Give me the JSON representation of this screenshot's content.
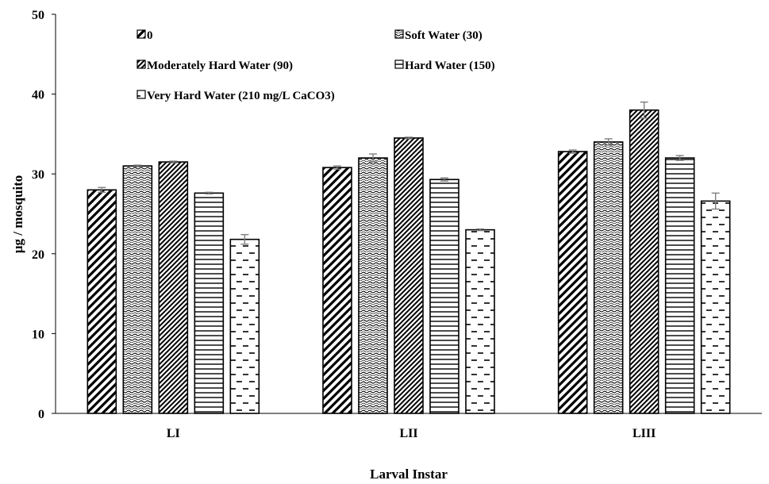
{
  "chart_data": {
    "type": "bar",
    "title": "",
    "xlabel": "Larval Instar",
    "ylabel": "µg / mosquito",
    "ylim": [
      0,
      50
    ],
    "yticks": [
      0,
      10,
      20,
      30,
      40,
      50
    ],
    "grid": false,
    "legend_position": "top (inside plot, two columns)",
    "categories": [
      "LI",
      "LII",
      "LIII"
    ],
    "series": [
      {
        "name": "0",
        "pattern": "wide-diagonal",
        "values": [
          28.0,
          30.8,
          32.8
        ],
        "errors": [
          0.3,
          0.2,
          0.2
        ]
      },
      {
        "name": "Soft Water (30)",
        "pattern": "wave",
        "values": [
          31.0,
          32.0,
          34.0
        ],
        "errors": [
          0.1,
          0.5,
          0.4
        ]
      },
      {
        "name": "Moderately Hard Water (90)",
        "pattern": "narrow-diagonal",
        "values": [
          31.5,
          34.5,
          38.0
        ],
        "errors": [
          0.1,
          0.1,
          1.0
        ]
      },
      {
        "name": "Hard Water (150)",
        "pattern": "horizontal",
        "values": [
          27.6,
          29.3,
          32.0
        ],
        "errors": [
          0.1,
          0.2,
          0.3
        ]
      },
      {
        "name": "Very Hard Water (210 mg/L CaCO3)",
        "pattern": "dashed-horizontal",
        "values": [
          21.8,
          23.0,
          26.6
        ],
        "errors": [
          0.6,
          0.1,
          1.0
        ]
      }
    ]
  }
}
